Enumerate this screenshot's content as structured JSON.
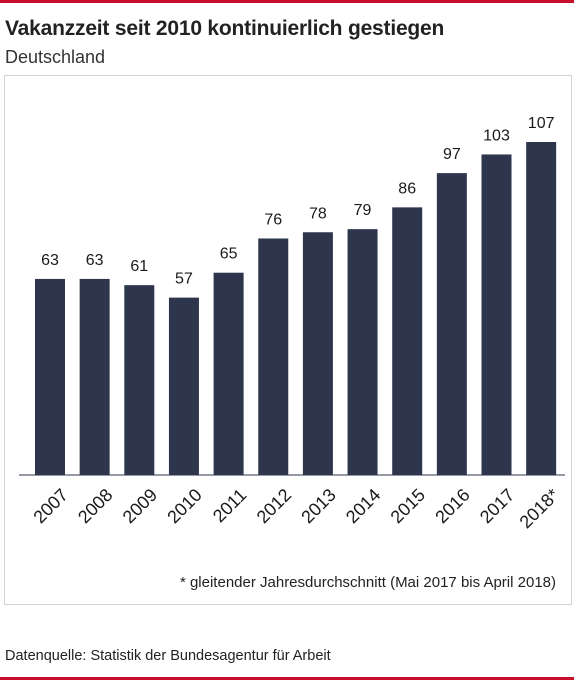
{
  "title": "Vakanzzeit seit 2010 kontinuierlich gestiegen",
  "subtitle": "Deutschland",
  "footnote": "* gleitender Jahresdurchschnitt (Mai 2017 bis April 2018)",
  "source": "Datenquelle: Statistik der Bundesagentur für Arbeit",
  "colors": {
    "bar": "#2e364d",
    "accent_rule": "#c8102e"
  },
  "chart_data": {
    "type": "bar",
    "categories": [
      "2007",
      "2008",
      "2009",
      "2010",
      "2011",
      "2012",
      "2013",
      "2014",
      "2015",
      "2016",
      "2017",
      "2018*"
    ],
    "values": [
      63,
      63,
      61,
      57,
      65,
      76,
      78,
      79,
      86,
      97,
      103,
      107
    ],
    "title": "",
    "xlabel": "",
    "ylabel": "",
    "ylim": [
      0,
      107
    ],
    "grid": false,
    "legend": "none"
  }
}
